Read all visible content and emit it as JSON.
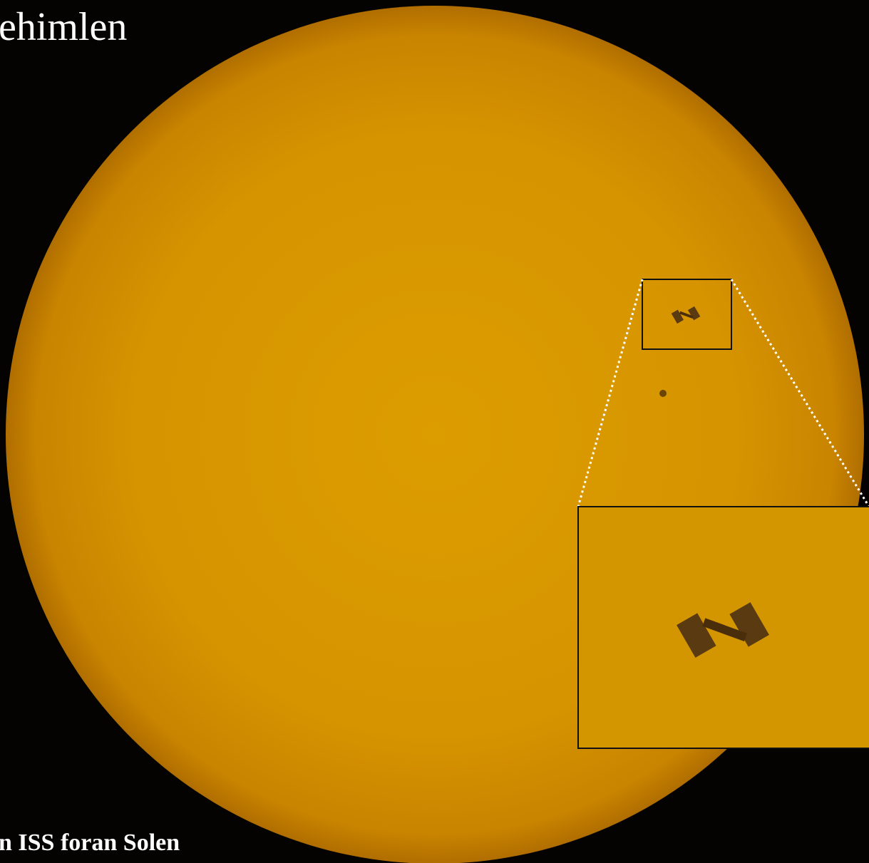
{
  "title": "ehimlen",
  "caption": "n ISS foran Solen"
}
